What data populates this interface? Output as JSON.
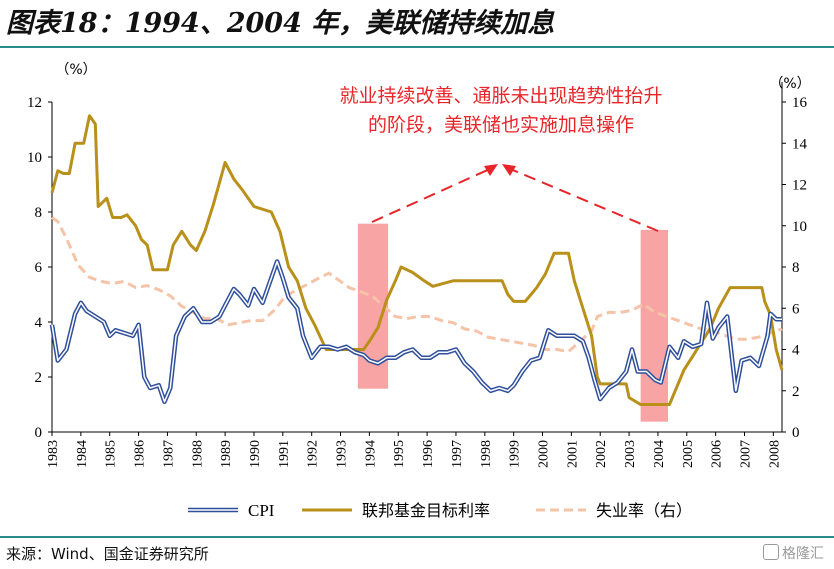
{
  "title": "图表18：1994、2004 年，美联储持续加息",
  "source": "来源：Wind、国金证券研究所",
  "watermark": "格隆汇",
  "chart_data": {
    "type": "line",
    "left_axis": {
      "unit": "（%）",
      "ylim": [
        0,
        12
      ],
      "ticks": [
        0,
        2,
        4,
        6,
        8,
        10,
        12
      ]
    },
    "right_axis": {
      "unit": "（%）",
      "ylim": [
        0,
        16
      ],
      "ticks": [
        0,
        2,
        4,
        6,
        8,
        10,
        12,
        14,
        16
      ]
    },
    "x_ticks": [
      "1983",
      "1984",
      "1985",
      "1986",
      "1987",
      "1988",
      "1989",
      "1990",
      "1991",
      "1992",
      "1993",
      "1994",
      "1995",
      "1996",
      "1997",
      "1998",
      "1999",
      "2000",
      "2001",
      "2002",
      "2003",
      "2004",
      "2005",
      "2006",
      "2007",
      "2008"
    ],
    "xlim": [
      1983,
      2008.3
    ],
    "annotation": {
      "text_lines": [
        "就业持续改善、通胀未出现趋势性抬升",
        "的阶段，美联储也实施加息操作"
      ],
      "color": "#e8262a"
    },
    "highlights": [
      {
        "x0": 1993.6,
        "x1": 1994.65,
        "y0_right": 2.1,
        "y1_right": 10.1
      },
      {
        "x0": 2003.4,
        "x1": 2004.35,
        "y0_right": 0.5,
        "y1_right": 9.8
      }
    ],
    "colors": {
      "cpi": "#2f4f9a",
      "fed": "#b8901a",
      "unemp": "#f5c4a8",
      "highlight": "#f79a9a"
    },
    "series": [
      {
        "name": "CPI",
        "axis": "left",
        "style": "double-line",
        "points": [
          [
            1983.0,
            3.9
          ],
          [
            1983.2,
            2.6
          ],
          [
            1983.5,
            3.0
          ],
          [
            1983.8,
            4.3
          ],
          [
            1984.0,
            4.7
          ],
          [
            1984.2,
            4.4
          ],
          [
            1984.5,
            4.2
          ],
          [
            1984.8,
            4.0
          ],
          [
            1985.0,
            3.5
          ],
          [
            1985.2,
            3.7
          ],
          [
            1985.5,
            3.6
          ],
          [
            1985.8,
            3.5
          ],
          [
            1986.0,
            3.9
          ],
          [
            1986.2,
            2.0
          ],
          [
            1986.4,
            1.6
          ],
          [
            1986.7,
            1.7
          ],
          [
            1986.9,
            1.1
          ],
          [
            1987.1,
            1.6
          ],
          [
            1987.3,
            3.5
          ],
          [
            1987.6,
            4.2
          ],
          [
            1987.9,
            4.5
          ],
          [
            1988.2,
            4.0
          ],
          [
            1988.5,
            4.0
          ],
          [
            1988.8,
            4.2
          ],
          [
            1989.0,
            4.6
          ],
          [
            1989.3,
            5.2
          ],
          [
            1989.5,
            5.0
          ],
          [
            1989.8,
            4.6
          ],
          [
            1990.0,
            5.2
          ],
          [
            1990.3,
            4.7
          ],
          [
            1990.6,
            5.6
          ],
          [
            1990.8,
            6.2
          ],
          [
            1991.0,
            5.6
          ],
          [
            1991.2,
            4.9
          ],
          [
            1991.5,
            4.5
          ],
          [
            1991.7,
            3.5
          ],
          [
            1992.0,
            2.7
          ],
          [
            1992.3,
            3.1
          ],
          [
            1992.6,
            3.1
          ],
          [
            1992.9,
            3.0
          ],
          [
            1993.2,
            3.1
          ],
          [
            1993.5,
            2.9
          ],
          [
            1993.8,
            2.8
          ],
          [
            1994.0,
            2.6
          ],
          [
            1994.3,
            2.5
          ],
          [
            1994.6,
            2.7
          ],
          [
            1994.9,
            2.7
          ],
          [
            1995.2,
            2.9
          ],
          [
            1995.5,
            3.0
          ],
          [
            1995.8,
            2.7
          ],
          [
            1996.1,
            2.7
          ],
          [
            1996.4,
            2.9
          ],
          [
            1996.7,
            2.9
          ],
          [
            1997.0,
            3.0
          ],
          [
            1997.3,
            2.5
          ],
          [
            1997.6,
            2.2
          ],
          [
            1997.9,
            1.8
          ],
          [
            1998.2,
            1.5
          ],
          [
            1998.5,
            1.6
          ],
          [
            1998.8,
            1.5
          ],
          [
            1999.0,
            1.7
          ],
          [
            1999.3,
            2.2
          ],
          [
            1999.6,
            2.6
          ],
          [
            1999.9,
            2.7
          ],
          [
            2000.2,
            3.7
          ],
          [
            2000.5,
            3.5
          ],
          [
            2000.8,
            3.5
          ],
          [
            2001.1,
            3.5
          ],
          [
            2001.4,
            3.3
          ],
          [
            2001.6,
            2.7
          ],
          [
            2001.8,
            1.9
          ],
          [
            2002.0,
            1.2
          ],
          [
            2002.3,
            1.6
          ],
          [
            2002.6,
            1.8
          ],
          [
            2002.9,
            2.2
          ],
          [
            2003.1,
            3.0
          ],
          [
            2003.3,
            2.2
          ],
          [
            2003.6,
            2.2
          ],
          [
            2003.9,
            1.9
          ],
          [
            2004.1,
            1.8
          ],
          [
            2004.4,
            3.1
          ],
          [
            2004.7,
            2.7
          ],
          [
            2004.9,
            3.3
          ],
          [
            2005.2,
            3.1
          ],
          [
            2005.5,
            3.2
          ],
          [
            2005.7,
            4.7
          ],
          [
            2005.9,
            3.4
          ],
          [
            2006.1,
            3.8
          ],
          [
            2006.4,
            4.2
          ],
          [
            2006.7,
            1.5
          ],
          [
            2006.9,
            2.6
          ],
          [
            2007.2,
            2.7
          ],
          [
            2007.5,
            2.4
          ],
          [
            2007.8,
            3.5
          ],
          [
            2007.9,
            4.3
          ],
          [
            2008.1,
            4.1
          ],
          [
            2008.3,
            4.1
          ]
        ]
      },
      {
        "name": "联邦基金目标利率",
        "axis": "left",
        "points": [
          [
            1983.0,
            8.7
          ],
          [
            1983.2,
            9.5
          ],
          [
            1983.4,
            9.4
          ],
          [
            1983.6,
            9.4
          ],
          [
            1983.8,
            10.5
          ],
          [
            1984.1,
            10.5
          ],
          [
            1984.3,
            11.5
          ],
          [
            1984.5,
            11.2
          ],
          [
            1984.6,
            8.2
          ],
          [
            1984.9,
            8.5
          ],
          [
            1985.1,
            7.8
          ],
          [
            1985.4,
            7.8
          ],
          [
            1985.6,
            7.9
          ],
          [
            1985.9,
            7.5
          ],
          [
            1986.1,
            7.0
          ],
          [
            1986.3,
            6.8
          ],
          [
            1986.5,
            5.9
          ],
          [
            1987.0,
            5.9
          ],
          [
            1987.2,
            6.8
          ],
          [
            1987.5,
            7.3
          ],
          [
            1987.8,
            6.8
          ],
          [
            1988.0,
            6.6
          ],
          [
            1988.3,
            7.3
          ],
          [
            1988.6,
            8.3
          ],
          [
            1989.0,
            9.8
          ],
          [
            1989.3,
            9.2
          ],
          [
            1989.6,
            8.8
          ],
          [
            1990.0,
            8.2
          ],
          [
            1990.6,
            8.0
          ],
          [
            1990.9,
            7.3
          ],
          [
            1991.2,
            6.0
          ],
          [
            1991.5,
            5.5
          ],
          [
            1991.8,
            4.5
          ],
          [
            1992.1,
            3.9
          ],
          [
            1992.5,
            3.0
          ],
          [
            1993.0,
            3.0
          ],
          [
            1993.8,
            3.0
          ],
          [
            1994.0,
            3.3
          ],
          [
            1994.3,
            3.8
          ],
          [
            1994.6,
            4.8
          ],
          [
            1994.9,
            5.5
          ],
          [
            1995.1,
            6.0
          ],
          [
            1995.5,
            5.8
          ],
          [
            1995.9,
            5.5
          ],
          [
            1996.2,
            5.3
          ],
          [
            1996.9,
            5.5
          ],
          [
            1997.2,
            5.5
          ],
          [
            1998.6,
            5.5
          ],
          [
            1998.8,
            5.0
          ],
          [
            1999.0,
            4.75
          ],
          [
            1999.4,
            4.75
          ],
          [
            1999.6,
            5.0
          ],
          [
            1999.8,
            5.25
          ],
          [
            2000.1,
            5.75
          ],
          [
            2000.4,
            6.5
          ],
          [
            2000.9,
            6.5
          ],
          [
            2001.1,
            5.5
          ],
          [
            2001.4,
            4.5
          ],
          [
            2001.7,
            3.5
          ],
          [
            2001.9,
            2.0
          ],
          [
            2002.0,
            1.75
          ],
          [
            2002.9,
            1.75
          ],
          [
            2003.0,
            1.25
          ],
          [
            2003.4,
            1.0
          ],
          [
            2004.4,
            1.0
          ],
          [
            2004.6,
            1.5
          ],
          [
            2004.9,
            2.25
          ],
          [
            2005.2,
            2.75
          ],
          [
            2005.5,
            3.25
          ],
          [
            2005.8,
            3.75
          ],
          [
            2006.1,
            4.5
          ],
          [
            2006.5,
            5.25
          ],
          [
            2007.6,
            5.25
          ],
          [
            2007.7,
            4.75
          ],
          [
            2007.9,
            4.25
          ],
          [
            2008.1,
            3.0
          ],
          [
            2008.3,
            2.25
          ]
        ]
      },
      {
        "name": "失业率（右）",
        "axis": "right",
        "points": [
          [
            1983.0,
            10.4
          ],
          [
            1983.2,
            10.2
          ],
          [
            1983.5,
            9.4
          ],
          [
            1983.9,
            8.1
          ],
          [
            1984.3,
            7.5
          ],
          [
            1984.7,
            7.3
          ],
          [
            1985.1,
            7.2
          ],
          [
            1985.5,
            7.3
          ],
          [
            1985.9,
            7.0
          ],
          [
            1986.3,
            7.1
          ],
          [
            1986.7,
            6.9
          ],
          [
            1987.1,
            6.6
          ],
          [
            1987.5,
            6.1
          ],
          [
            1987.9,
            5.8
          ],
          [
            1988.3,
            5.5
          ],
          [
            1988.7,
            5.5
          ],
          [
            1989.1,
            5.2
          ],
          [
            1989.5,
            5.3
          ],
          [
            1989.9,
            5.4
          ],
          [
            1990.3,
            5.4
          ],
          [
            1990.7,
            5.9
          ],
          [
            1991.1,
            6.6
          ],
          [
            1991.5,
            6.9
          ],
          [
            1991.9,
            7.2
          ],
          [
            1992.3,
            7.5
          ],
          [
            1992.6,
            7.7
          ],
          [
            1992.9,
            7.4
          ],
          [
            1993.3,
            7.0
          ],
          [
            1993.7,
            6.8
          ],
          [
            1994.1,
            6.6
          ],
          [
            1994.5,
            6.1
          ],
          [
            1994.9,
            5.6
          ],
          [
            1995.3,
            5.5
          ],
          [
            1995.7,
            5.6
          ],
          [
            1996.1,
            5.6
          ],
          [
            1996.5,
            5.4
          ],
          [
            1996.9,
            5.3
          ],
          [
            1997.3,
            5.0
          ],
          [
            1997.7,
            4.9
          ],
          [
            1998.1,
            4.6
          ],
          [
            1998.5,
            4.5
          ],
          [
            1998.9,
            4.4
          ],
          [
            1999.3,
            4.3
          ],
          [
            1999.7,
            4.2
          ],
          [
            2000.1,
            4.0
          ],
          [
            2000.5,
            4.0
          ],
          [
            2000.9,
            3.9
          ],
          [
            2001.3,
            4.4
          ],
          [
            2001.7,
            4.9
          ],
          [
            2001.9,
            5.6
          ],
          [
            2002.3,
            5.8
          ],
          [
            2002.7,
            5.8
          ],
          [
            2003.1,
            5.9
          ],
          [
            2003.5,
            6.2
          ],
          [
            2003.9,
            5.8
          ],
          [
            2004.3,
            5.6
          ],
          [
            2004.7,
            5.4
          ],
          [
            2005.1,
            5.2
          ],
          [
            2005.5,
            5.0
          ],
          [
            2005.9,
            4.9
          ],
          [
            2006.3,
            4.7
          ],
          [
            2006.7,
            4.5
          ],
          [
            2007.1,
            4.5
          ],
          [
            2007.5,
            4.6
          ],
          [
            2007.9,
            4.8
          ],
          [
            2008.3,
            5.0
          ]
        ]
      }
    ],
    "legend": {
      "position": "bottom",
      "labels": [
        "CPI",
        "联邦基金目标利率",
        "失业率（右）"
      ]
    }
  }
}
